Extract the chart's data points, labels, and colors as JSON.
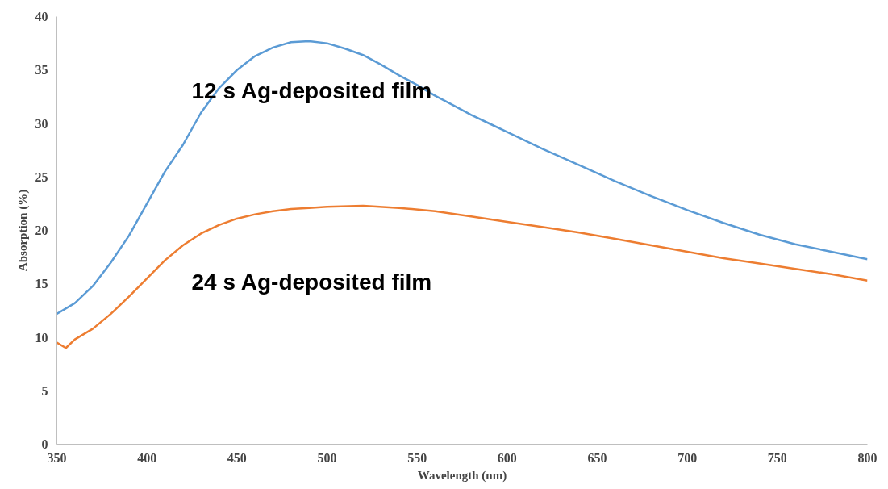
{
  "chart_data": {
    "type": "line",
    "xlabel": "Wavelength (nm)",
    "ylabel": "Absorption (%)",
    "xlim": [
      350,
      800
    ],
    "xticks": [
      350,
      400,
      450,
      500,
      550,
      600,
      650,
      700,
      750,
      800
    ],
    "ylim": [
      0,
      40
    ],
    "yticks": [
      0,
      5,
      10,
      15,
      20,
      25,
      30,
      35,
      40
    ],
    "grid": false,
    "legend": false,
    "marker": "none",
    "line_style": "solid",
    "series": [
      {
        "name": "12 s Ag-deposited film",
        "color": "#5b9bd5",
        "x": [
          350,
          360,
          370,
          380,
          390,
          400,
          410,
          420,
          430,
          440,
          450,
          460,
          470,
          480,
          490,
          500,
          510,
          520,
          530,
          540,
          550,
          560,
          570,
          580,
          590,
          600,
          620,
          640,
          660,
          680,
          700,
          720,
          740,
          760,
          780,
          800
        ],
        "values": [
          12.2,
          13.2,
          14.8,
          17,
          19.5,
          22.5,
          25.5,
          28,
          31,
          33.3,
          35,
          36.3,
          37.1,
          37.6,
          37.7,
          37.5,
          37,
          36.4,
          35.5,
          34.5,
          33.6,
          32.6,
          31.7,
          30.8,
          30,
          29.2,
          27.6,
          26.1,
          24.6,
          23.2,
          21.9,
          20.7,
          19.6,
          18.7,
          18,
          17.3
        ]
      },
      {
        "name": "24 s Ag-deposited film",
        "color": "#ed7d31",
        "x": [
          350,
          355,
          360,
          370,
          380,
          390,
          400,
          410,
          420,
          430,
          440,
          450,
          460,
          470,
          480,
          490,
          500,
          520,
          540,
          560,
          580,
          600,
          620,
          640,
          660,
          680,
          700,
          720,
          740,
          760,
          780,
          800
        ],
        "values": [
          9.5,
          9.0,
          9.8,
          10.8,
          12.2,
          13.8,
          15.5,
          17.2,
          18.6,
          19.7,
          20.5,
          21.1,
          21.5,
          21.8,
          22.0,
          22.1,
          22.2,
          22.3,
          22.1,
          21.8,
          21.3,
          20.8,
          20.3,
          19.8,
          19.2,
          18.6,
          18.0,
          17.4,
          16.9,
          16.4,
          15.9,
          15.3
        ]
      }
    ]
  }
}
